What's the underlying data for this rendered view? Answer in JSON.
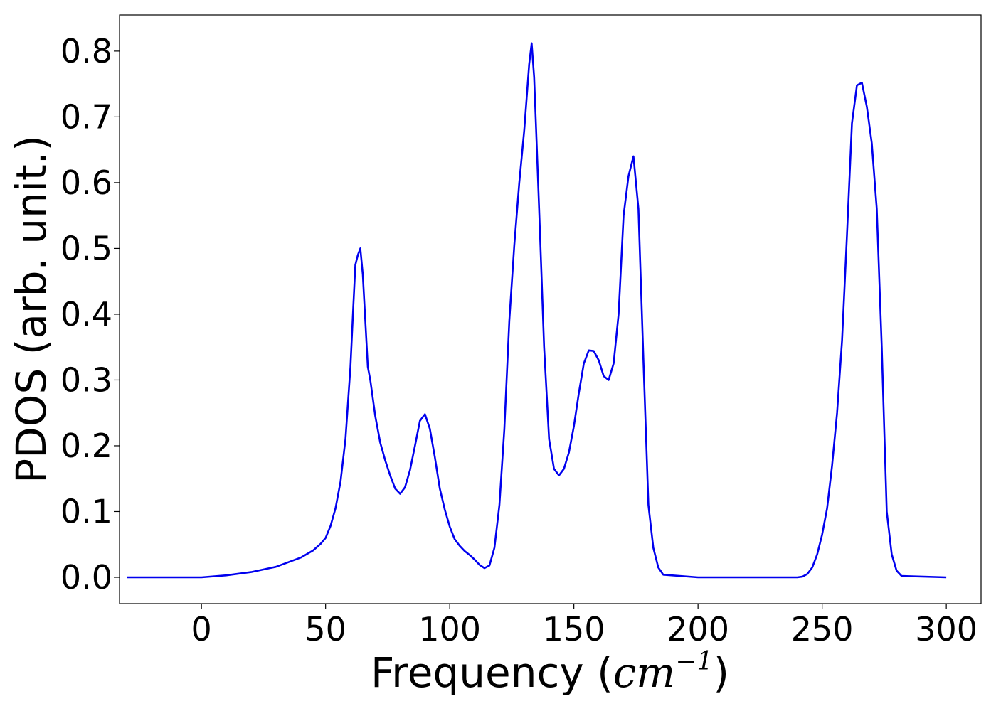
{
  "chart_data": {
    "type": "line",
    "title": "",
    "xlabel": "Frequency",
    "xlabel_unit_base": "cm",
    "xlabel_unit_exp": "−1",
    "ylabel": "PDOS (arb. unit.)",
    "xlim": [
      -33,
      314
    ],
    "ylim": [
      -0.04,
      0.855
    ],
    "xticks": [
      0,
      50,
      100,
      150,
      200,
      250,
      300
    ],
    "xtick_labels": [
      "0",
      "50",
      "100",
      "150",
      "200",
      "250",
      "300"
    ],
    "yticks": [
      0.0,
      0.1,
      0.2,
      0.3,
      0.4,
      0.5,
      0.6,
      0.7,
      0.8
    ],
    "ytick_labels": [
      "0.0",
      "0.1",
      "0.2",
      "0.3",
      "0.4",
      "0.5",
      "0.6",
      "0.7",
      "0.8"
    ],
    "grid": false,
    "series": [
      {
        "color": "#0000ee",
        "x": [
          -30,
          0,
          10,
          20,
          30,
          40,
          45,
          48,
          50,
          52,
          54,
          56,
          58,
          60,
          61,
          62,
          63,
          64,
          65,
          66,
          67,
          68,
          70,
          72,
          74,
          76,
          78,
          80,
          82,
          84,
          86,
          88,
          90,
          92,
          94,
          96,
          98,
          100,
          102,
          104,
          106,
          108,
          110,
          112,
          114,
          116,
          118,
          120,
          122,
          124,
          126,
          128,
          130,
          132,
          133,
          134,
          136,
          138,
          140,
          142,
          144,
          146,
          148,
          150,
          152,
          154,
          156,
          158,
          160,
          162,
          164,
          166,
          168,
          170,
          172,
          174,
          176,
          178,
          180,
          182,
          184,
          186,
          200,
          220,
          240,
          242,
          244,
          246,
          248,
          250,
          252,
          254,
          256,
          258,
          260,
          262,
          264,
          266,
          268,
          270,
          272,
          274,
          276,
          278,
          280,
          282,
          300
        ],
        "y": [
          0.0,
          0.0,
          0.003,
          0.008,
          0.016,
          0.03,
          0.041,
          0.051,
          0.06,
          0.078,
          0.105,
          0.145,
          0.21,
          0.32,
          0.4,
          0.475,
          0.49,
          0.5,
          0.46,
          0.39,
          0.32,
          0.3,
          0.245,
          0.205,
          0.178,
          0.155,
          0.135,
          0.127,
          0.137,
          0.163,
          0.2,
          0.238,
          0.248,
          0.226,
          0.183,
          0.135,
          0.103,
          0.077,
          0.058,
          0.048,
          0.04,
          0.034,
          0.027,
          0.019,
          0.014,
          0.018,
          0.045,
          0.11,
          0.225,
          0.39,
          0.505,
          0.6,
          0.68,
          0.78,
          0.812,
          0.76,
          0.56,
          0.35,
          0.21,
          0.165,
          0.155,
          0.165,
          0.19,
          0.23,
          0.28,
          0.325,
          0.345,
          0.344,
          0.33,
          0.306,
          0.3,
          0.325,
          0.4,
          0.55,
          0.61,
          0.64,
          0.56,
          0.33,
          0.11,
          0.045,
          0.015,
          0.004,
          0.0,
          0.0,
          0.0,
          0.001,
          0.005,
          0.015,
          0.035,
          0.065,
          0.105,
          0.17,
          0.25,
          0.36,
          0.52,
          0.69,
          0.748,
          0.752,
          0.715,
          0.66,
          0.56,
          0.35,
          0.1,
          0.035,
          0.01,
          0.002,
          0.0
        ]
      }
    ]
  }
}
